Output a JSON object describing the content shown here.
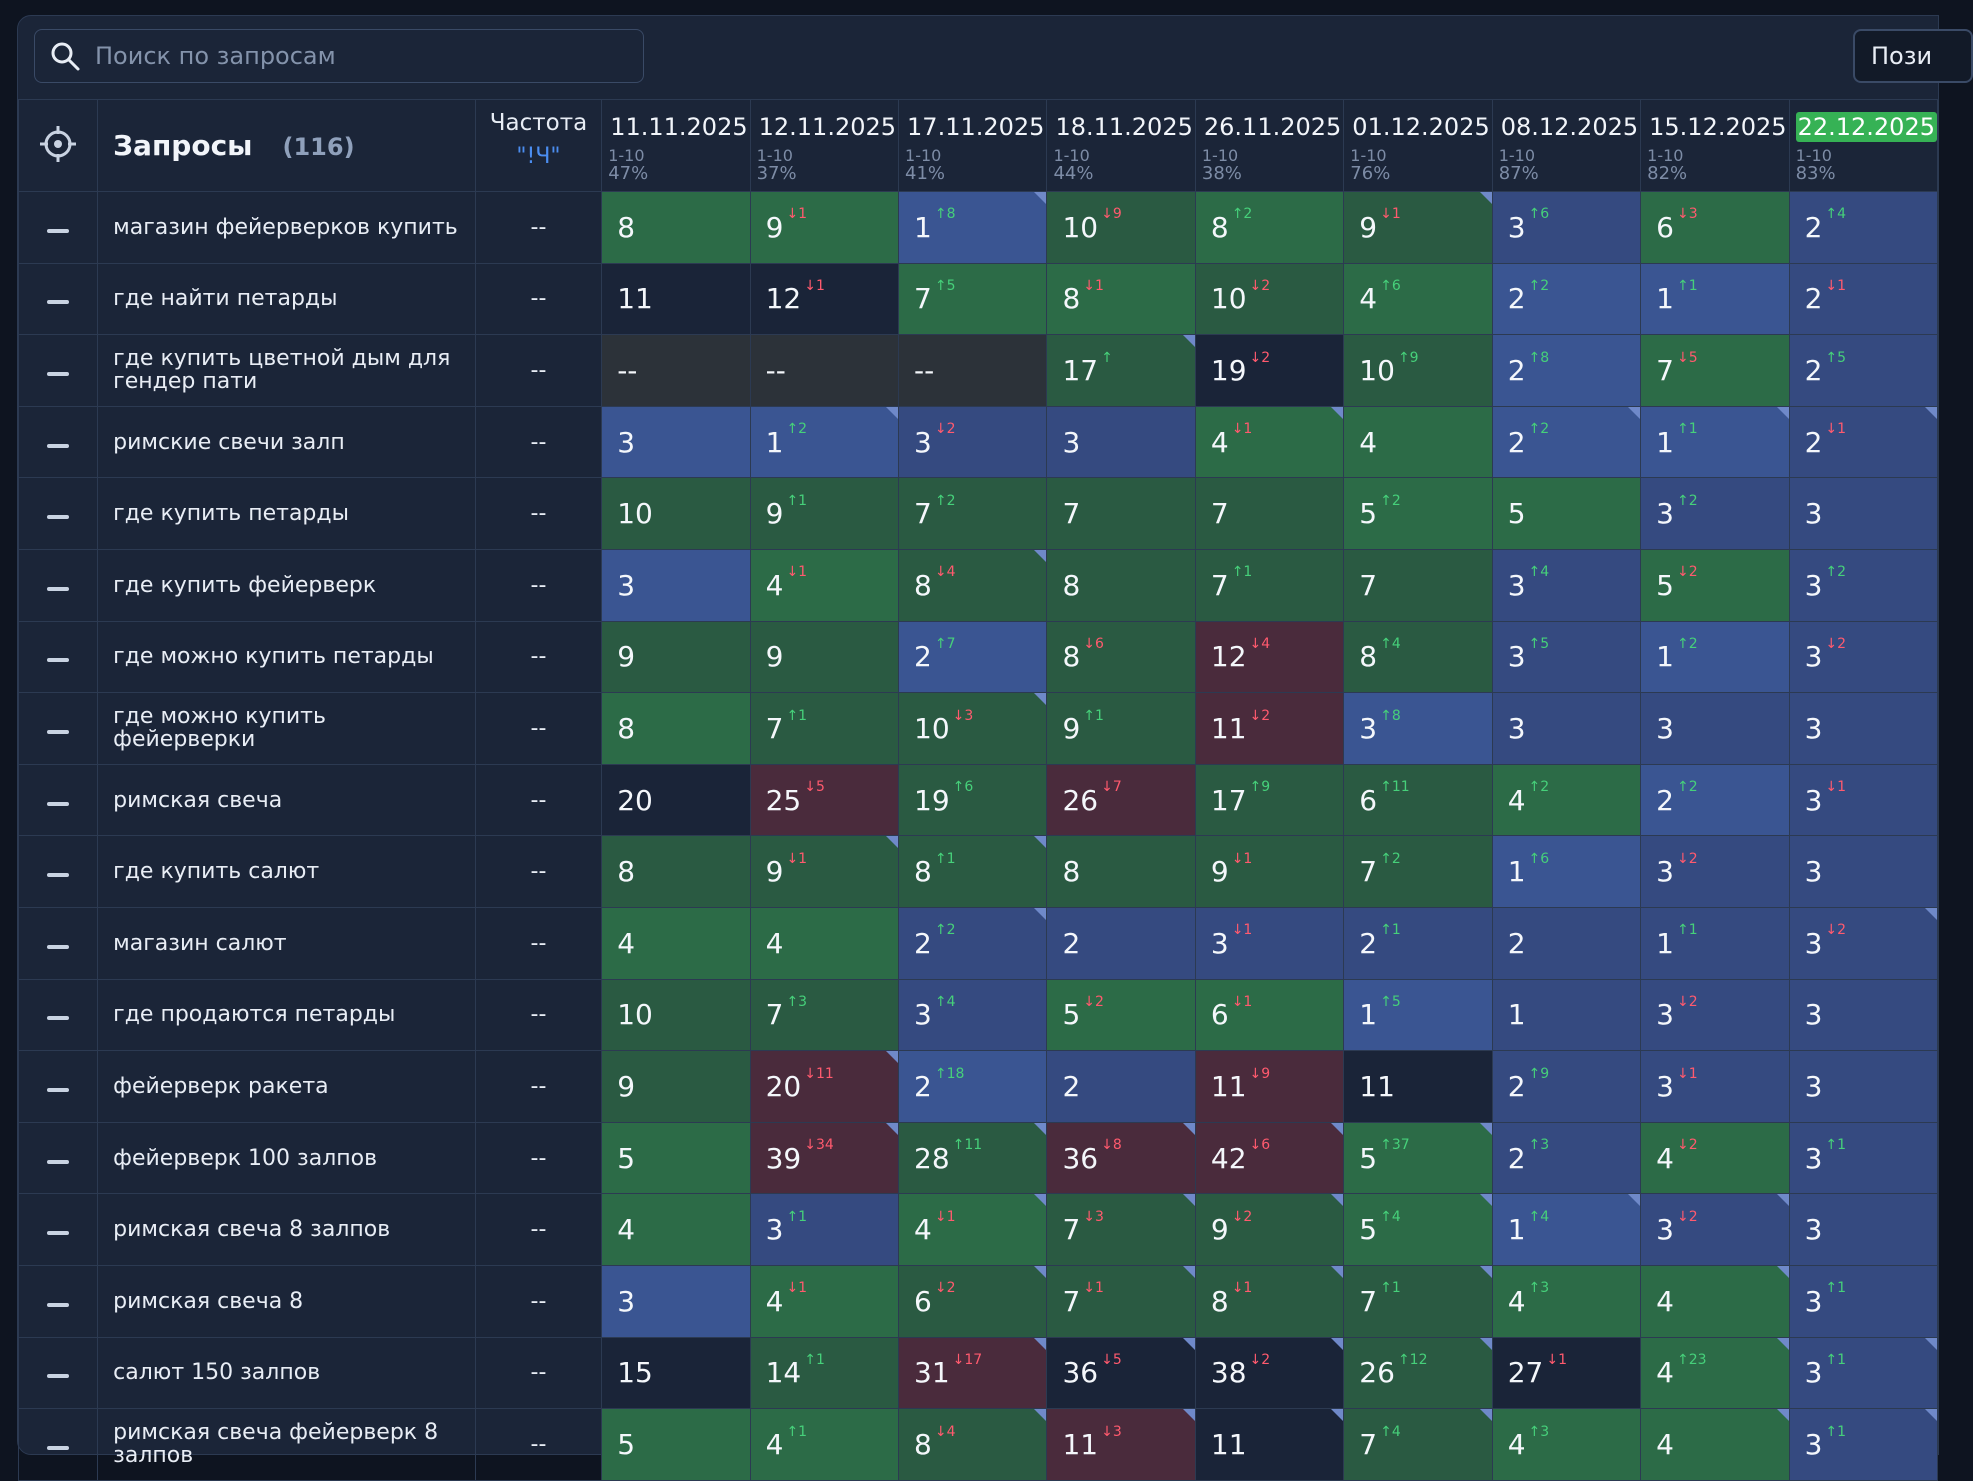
{
  "search": {
    "placeholder": "Поиск по запросам"
  },
  "toolbar": {
    "positions_label": "Пози"
  },
  "header": {
    "queries_title": "Запросы",
    "queries_count": "(116)",
    "freq_label": "Частота",
    "freq_sub": "\"!Ч\"",
    "dates": [
      {
        "date": "11.11.2025",
        "range": "1-10",
        "pct": "47%"
      },
      {
        "date": "12.11.2025",
        "range": "1-10",
        "pct": "37%"
      },
      {
        "date": "17.11.2025",
        "range": "1-10",
        "pct": "41%"
      },
      {
        "date": "18.11.2025",
        "range": "1-10",
        "pct": "44%"
      },
      {
        "date": "26.11.2025",
        "range": "1-10",
        "pct": "38%"
      },
      {
        "date": "01.12.2025",
        "range": "1-10",
        "pct": "76%"
      },
      {
        "date": "08.12.2025",
        "range": "1-10",
        "pct": "87%"
      },
      {
        "date": "15.12.2025",
        "range": "1-10",
        "pct": "82%"
      },
      {
        "date": "22.12.2025",
        "range": "1-10",
        "pct": "83%"
      }
    ]
  },
  "rows": [
    {
      "query": "магазин фейерверков купить",
      "freq": "--",
      "cells": [
        {
          "v": "8",
          "c": "cg"
        },
        {
          "v": "9",
          "d": "↓1",
          "c": "cg"
        },
        {
          "v": "1",
          "d": "↑8",
          "c": "cb",
          "k": 1
        },
        {
          "v": "10",
          "d": "↓9",
          "c": "cg2"
        },
        {
          "v": "8",
          "d": "↑2",
          "c": "cg"
        },
        {
          "v": "9",
          "d": "↓1",
          "c": "cg2",
          "k": 1
        },
        {
          "v": "3",
          "d": "↑6",
          "c": "cb2"
        },
        {
          "v": "6",
          "d": "↓3",
          "c": "cg"
        },
        {
          "v": "2",
          "d": "↑4",
          "c": "cb2"
        }
      ]
    },
    {
      "query": "где найти петарды",
      "freq": "--",
      "cells": [
        {
          "v": "11",
          "c": "cn"
        },
        {
          "v": "12",
          "d": "↓1",
          "c": "cn"
        },
        {
          "v": "7",
          "d": "↑5",
          "c": "cg"
        },
        {
          "v": "8",
          "d": "↓1",
          "c": "cg"
        },
        {
          "v": "10",
          "d": "↓2",
          "c": "cg2"
        },
        {
          "v": "4",
          "d": "↑6",
          "c": "cg"
        },
        {
          "v": "2",
          "d": "↑2",
          "c": "cb"
        },
        {
          "v": "1",
          "d": "↑1",
          "c": "cb"
        },
        {
          "v": "2",
          "d": "↓1",
          "c": "cb2"
        }
      ]
    },
    {
      "query": "где купить цветной дым для гендер пати",
      "freq": "--",
      "cells": [
        {
          "v": "--",
          "c": "cd"
        },
        {
          "v": "--",
          "c": "cd"
        },
        {
          "v": "--",
          "c": "cd"
        },
        {
          "v": "17",
          "d": "↑",
          "c": "cg2",
          "k": 1
        },
        {
          "v": "19",
          "d": "↓2",
          "c": "cn"
        },
        {
          "v": "10",
          "d": "↑9",
          "c": "cg2"
        },
        {
          "v": "2",
          "d": "↑8",
          "c": "cb"
        },
        {
          "v": "7",
          "d": "↓5",
          "c": "cg"
        },
        {
          "v": "2",
          "d": "↑5",
          "c": "cb2"
        }
      ]
    },
    {
      "query": "римские свечи залп",
      "freq": "--",
      "cells": [
        {
          "v": "3",
          "c": "cb"
        },
        {
          "v": "1",
          "d": "↑2",
          "c": "cb",
          "k": 1
        },
        {
          "v": "3",
          "d": "↓2",
          "c": "cb2"
        },
        {
          "v": "3",
          "c": "cb2"
        },
        {
          "v": "4",
          "d": "↓1",
          "c": "cg",
          "k": 1
        },
        {
          "v": "4",
          "c": "cg"
        },
        {
          "v": "2",
          "d": "↑2",
          "c": "cb",
          "k": 1
        },
        {
          "v": "1",
          "d": "↑1",
          "c": "cb",
          "k": 1
        },
        {
          "v": "2",
          "d": "↓1",
          "c": "cb2",
          "k": 1
        }
      ]
    },
    {
      "query": "где купить петарды",
      "freq": "--",
      "cells": [
        {
          "v": "10",
          "c": "cg2"
        },
        {
          "v": "9",
          "d": "↑1",
          "c": "cg2"
        },
        {
          "v": "7",
          "d": "↑2",
          "c": "cg2"
        },
        {
          "v": "7",
          "c": "cg2"
        },
        {
          "v": "7",
          "c": "cg2"
        },
        {
          "v": "5",
          "d": "↑2",
          "c": "cg"
        },
        {
          "v": "5",
          "c": "cg"
        },
        {
          "v": "3",
          "d": "↑2",
          "c": "cb2"
        },
        {
          "v": "3",
          "c": "cb2"
        }
      ]
    },
    {
      "query": "где купить фейерверк",
      "freq": "--",
      "cells": [
        {
          "v": "3",
          "c": "cb"
        },
        {
          "v": "4",
          "d": "↓1",
          "c": "cg"
        },
        {
          "v": "8",
          "d": "↓4",
          "c": "cg2",
          "k": 1
        },
        {
          "v": "8",
          "c": "cg2"
        },
        {
          "v": "7",
          "d": "↑1",
          "c": "cg2"
        },
        {
          "v": "7",
          "c": "cg2"
        },
        {
          "v": "3",
          "d": "↑4",
          "c": "cb2"
        },
        {
          "v": "5",
          "d": "↓2",
          "c": "cg"
        },
        {
          "v": "3",
          "d": "↑2",
          "c": "cb2"
        }
      ]
    },
    {
      "query": "где можно купить петарды",
      "freq": "--",
      "cells": [
        {
          "v": "9",
          "c": "cg2"
        },
        {
          "v": "9",
          "c": "cg2"
        },
        {
          "v": "2",
          "d": "↑7",
          "c": "cb"
        },
        {
          "v": "8",
          "d": "↓6",
          "c": "cg2"
        },
        {
          "v": "12",
          "d": "↓4",
          "c": "cr"
        },
        {
          "v": "8",
          "d": "↑4",
          "c": "cg2"
        },
        {
          "v": "3",
          "d": "↑5",
          "c": "cb2"
        },
        {
          "v": "1",
          "d": "↑2",
          "c": "cb"
        },
        {
          "v": "3",
          "d": "↓2",
          "c": "cb2"
        }
      ]
    },
    {
      "query": "где можно купить фейерверки",
      "freq": "--",
      "cells": [
        {
          "v": "8",
          "c": "cg"
        },
        {
          "v": "7",
          "d": "↑1",
          "c": "cg2"
        },
        {
          "v": "10",
          "d": "↓3",
          "c": "cg2",
          "k": 1
        },
        {
          "v": "9",
          "d": "↑1",
          "c": "cg2"
        },
        {
          "v": "11",
          "d": "↓2",
          "c": "cr"
        },
        {
          "v": "3",
          "d": "↑8",
          "c": "cb"
        },
        {
          "v": "3",
          "c": "cb2"
        },
        {
          "v": "3",
          "c": "cb2"
        },
        {
          "v": "3",
          "c": "cb2"
        }
      ]
    },
    {
      "query": "римская свеча",
      "freq": "--",
      "cells": [
        {
          "v": "20",
          "c": "cn"
        },
        {
          "v": "25",
          "d": "↓5",
          "c": "cr"
        },
        {
          "v": "19",
          "d": "↑6",
          "c": "cg2"
        },
        {
          "v": "26",
          "d": "↓7",
          "c": "cr"
        },
        {
          "v": "17",
          "d": "↑9",
          "c": "cg2"
        },
        {
          "v": "6",
          "d": "↑11",
          "c": "cg2"
        },
        {
          "v": "4",
          "d": "↑2",
          "c": "cg"
        },
        {
          "v": "2",
          "d": "↑2",
          "c": "cb"
        },
        {
          "v": "3",
          "d": "↓1",
          "c": "cb2"
        }
      ]
    },
    {
      "query": "где купить салют",
      "freq": "--",
      "cells": [
        {
          "v": "8",
          "c": "cg2"
        },
        {
          "v": "9",
          "d": "↓1",
          "c": "cg2",
          "k": 1
        },
        {
          "v": "8",
          "d": "↑1",
          "c": "cg2",
          "k": 1
        },
        {
          "v": "8",
          "c": "cg2"
        },
        {
          "v": "9",
          "d": "↓1",
          "c": "cg2"
        },
        {
          "v": "7",
          "d": "↑2",
          "c": "cg2"
        },
        {
          "v": "1",
          "d": "↑6",
          "c": "cb"
        },
        {
          "v": "3",
          "d": "↓2",
          "c": "cb2"
        },
        {
          "v": "3",
          "c": "cb2"
        }
      ]
    },
    {
      "query": "магазин салют",
      "freq": "--",
      "cells": [
        {
          "v": "4",
          "c": "cg"
        },
        {
          "v": "4",
          "c": "cg"
        },
        {
          "v": "2",
          "d": "↑2",
          "c": "cb2",
          "k": 1
        },
        {
          "v": "2",
          "c": "cb2"
        },
        {
          "v": "3",
          "d": "↓1",
          "c": "cb2"
        },
        {
          "v": "2",
          "d": "↑1",
          "c": "cb2"
        },
        {
          "v": "2",
          "c": "cb2"
        },
        {
          "v": "1",
          "d": "↑1",
          "c": "cb2"
        },
        {
          "v": "3",
          "d": "↓2",
          "c": "cb2",
          "k": 1
        }
      ]
    },
    {
      "query": "где продаются петарды",
      "freq": "--",
      "cells": [
        {
          "v": "10",
          "c": "cg2"
        },
        {
          "v": "7",
          "d": "↑3",
          "c": "cg2"
        },
        {
          "v": "3",
          "d": "↑4",
          "c": "cb2"
        },
        {
          "v": "5",
          "d": "↓2",
          "c": "cg"
        },
        {
          "v": "6",
          "d": "↓1",
          "c": "cg"
        },
        {
          "v": "1",
          "d": "↑5",
          "c": "cb"
        },
        {
          "v": "1",
          "c": "cb2"
        },
        {
          "v": "3",
          "d": "↓2",
          "c": "cb2"
        },
        {
          "v": "3",
          "c": "cb2"
        }
      ]
    },
    {
      "query": "фейерверк ракета",
      "freq": "--",
      "cells": [
        {
          "v": "9",
          "c": "cg2"
        },
        {
          "v": "20",
          "d": "↓11",
          "c": "cr",
          "k": 1
        },
        {
          "v": "2",
          "d": "↑18",
          "c": "cb"
        },
        {
          "v": "2",
          "c": "cb2"
        },
        {
          "v": "11",
          "d": "↓9",
          "c": "cr"
        },
        {
          "v": "11",
          "c": "cn"
        },
        {
          "v": "2",
          "d": "↑9",
          "c": "cb2"
        },
        {
          "v": "3",
          "d": "↓1",
          "c": "cb2"
        },
        {
          "v": "3",
          "c": "cb2"
        }
      ]
    },
    {
      "query": "фейерверк 100 залпов",
      "freq": "--",
      "cells": [
        {
          "v": "5",
          "c": "cg"
        },
        {
          "v": "39",
          "d": "↓34",
          "c": "cr",
          "k": 1
        },
        {
          "v": "28",
          "d": "↑11",
          "c": "cg2",
          "k": 1
        },
        {
          "v": "36",
          "d": "↓8",
          "c": "cr",
          "k": 1
        },
        {
          "v": "42",
          "d": "↓6",
          "c": "cr",
          "k": 1
        },
        {
          "v": "5",
          "d": "↑37",
          "c": "cg",
          "k": 1
        },
        {
          "v": "2",
          "d": "↑3",
          "c": "cb2"
        },
        {
          "v": "4",
          "d": "↓2",
          "c": "cg"
        },
        {
          "v": "3",
          "d": "↑1",
          "c": "cb2"
        }
      ]
    },
    {
      "query": "римская свеча 8 залпов",
      "freq": "--",
      "cells": [
        {
          "v": "4",
          "c": "cg"
        },
        {
          "v": "3",
          "d": "↑1",
          "c": "cb2"
        },
        {
          "v": "4",
          "d": "↓1",
          "c": "cg",
          "k": 1
        },
        {
          "v": "7",
          "d": "↓3",
          "c": "cg2",
          "k": 1
        },
        {
          "v": "9",
          "d": "↓2",
          "c": "cg2",
          "k": 1
        },
        {
          "v": "5",
          "d": "↑4",
          "c": "cg",
          "k": 1
        },
        {
          "v": "1",
          "d": "↑4",
          "c": "cb",
          "k": 1
        },
        {
          "v": "3",
          "d": "↓2",
          "c": "cb2",
          "k": 1
        },
        {
          "v": "3",
          "c": "cb2"
        }
      ]
    },
    {
      "query": "римская свеча 8",
      "freq": "--",
      "cells": [
        {
          "v": "3",
          "c": "cb"
        },
        {
          "v": "4",
          "d": "↓1",
          "c": "cg"
        },
        {
          "v": "6",
          "d": "↓2",
          "c": "cg2",
          "k": 1
        },
        {
          "v": "7",
          "d": "↓1",
          "c": "cg2",
          "k": 1
        },
        {
          "v": "8",
          "d": "↓1",
          "c": "cg2",
          "k": 1
        },
        {
          "v": "7",
          "d": "↑1",
          "c": "cg2",
          "k": 1
        },
        {
          "v": "4",
          "d": "↑3",
          "c": "cg"
        },
        {
          "v": "4",
          "c": "cg",
          "k": 1
        },
        {
          "v": "3",
          "d": "↑1",
          "c": "cb2"
        }
      ]
    },
    {
      "query": "салют 150 залпов",
      "freq": "--",
      "cells": [
        {
          "v": "15",
          "c": "cn"
        },
        {
          "v": "14",
          "d": "↑1",
          "c": "cg2"
        },
        {
          "v": "31",
          "d": "↓17",
          "c": "cr",
          "k": 1
        },
        {
          "v": "36",
          "d": "↓5",
          "c": "cn",
          "k": 1
        },
        {
          "v": "38",
          "d": "↓2",
          "c": "cn",
          "k": 1
        },
        {
          "v": "26",
          "d": "↑12",
          "c": "cg2",
          "k": 1
        },
        {
          "v": "27",
          "d": "↓1",
          "c": "cn"
        },
        {
          "v": "4",
          "d": "↑23",
          "c": "cg",
          "k": 1
        },
        {
          "v": "3",
          "d": "↑1",
          "c": "cb2",
          "k": 1
        }
      ]
    },
    {
      "query": "римская свеча фейерверк 8 залпов",
      "freq": "--",
      "cells": [
        {
          "v": "5",
          "c": "cg"
        },
        {
          "v": "4",
          "d": "↑1",
          "c": "cg"
        },
        {
          "v": "8",
          "d": "↓4",
          "c": "cg2",
          "k": 1
        },
        {
          "v": "11",
          "d": "↓3",
          "c": "cr",
          "k": 1
        },
        {
          "v": "11",
          "c": "cn",
          "k": 1
        },
        {
          "v": "7",
          "d": "↑4",
          "c": "cg2",
          "k": 1
        },
        {
          "v": "4",
          "d": "↑3",
          "c": "cg"
        },
        {
          "v": "4",
          "c": "cg",
          "k": 1
        },
        {
          "v": "3",
          "d": "↑1",
          "c": "cb2",
          "k": 1
        }
      ]
    }
  ]
}
